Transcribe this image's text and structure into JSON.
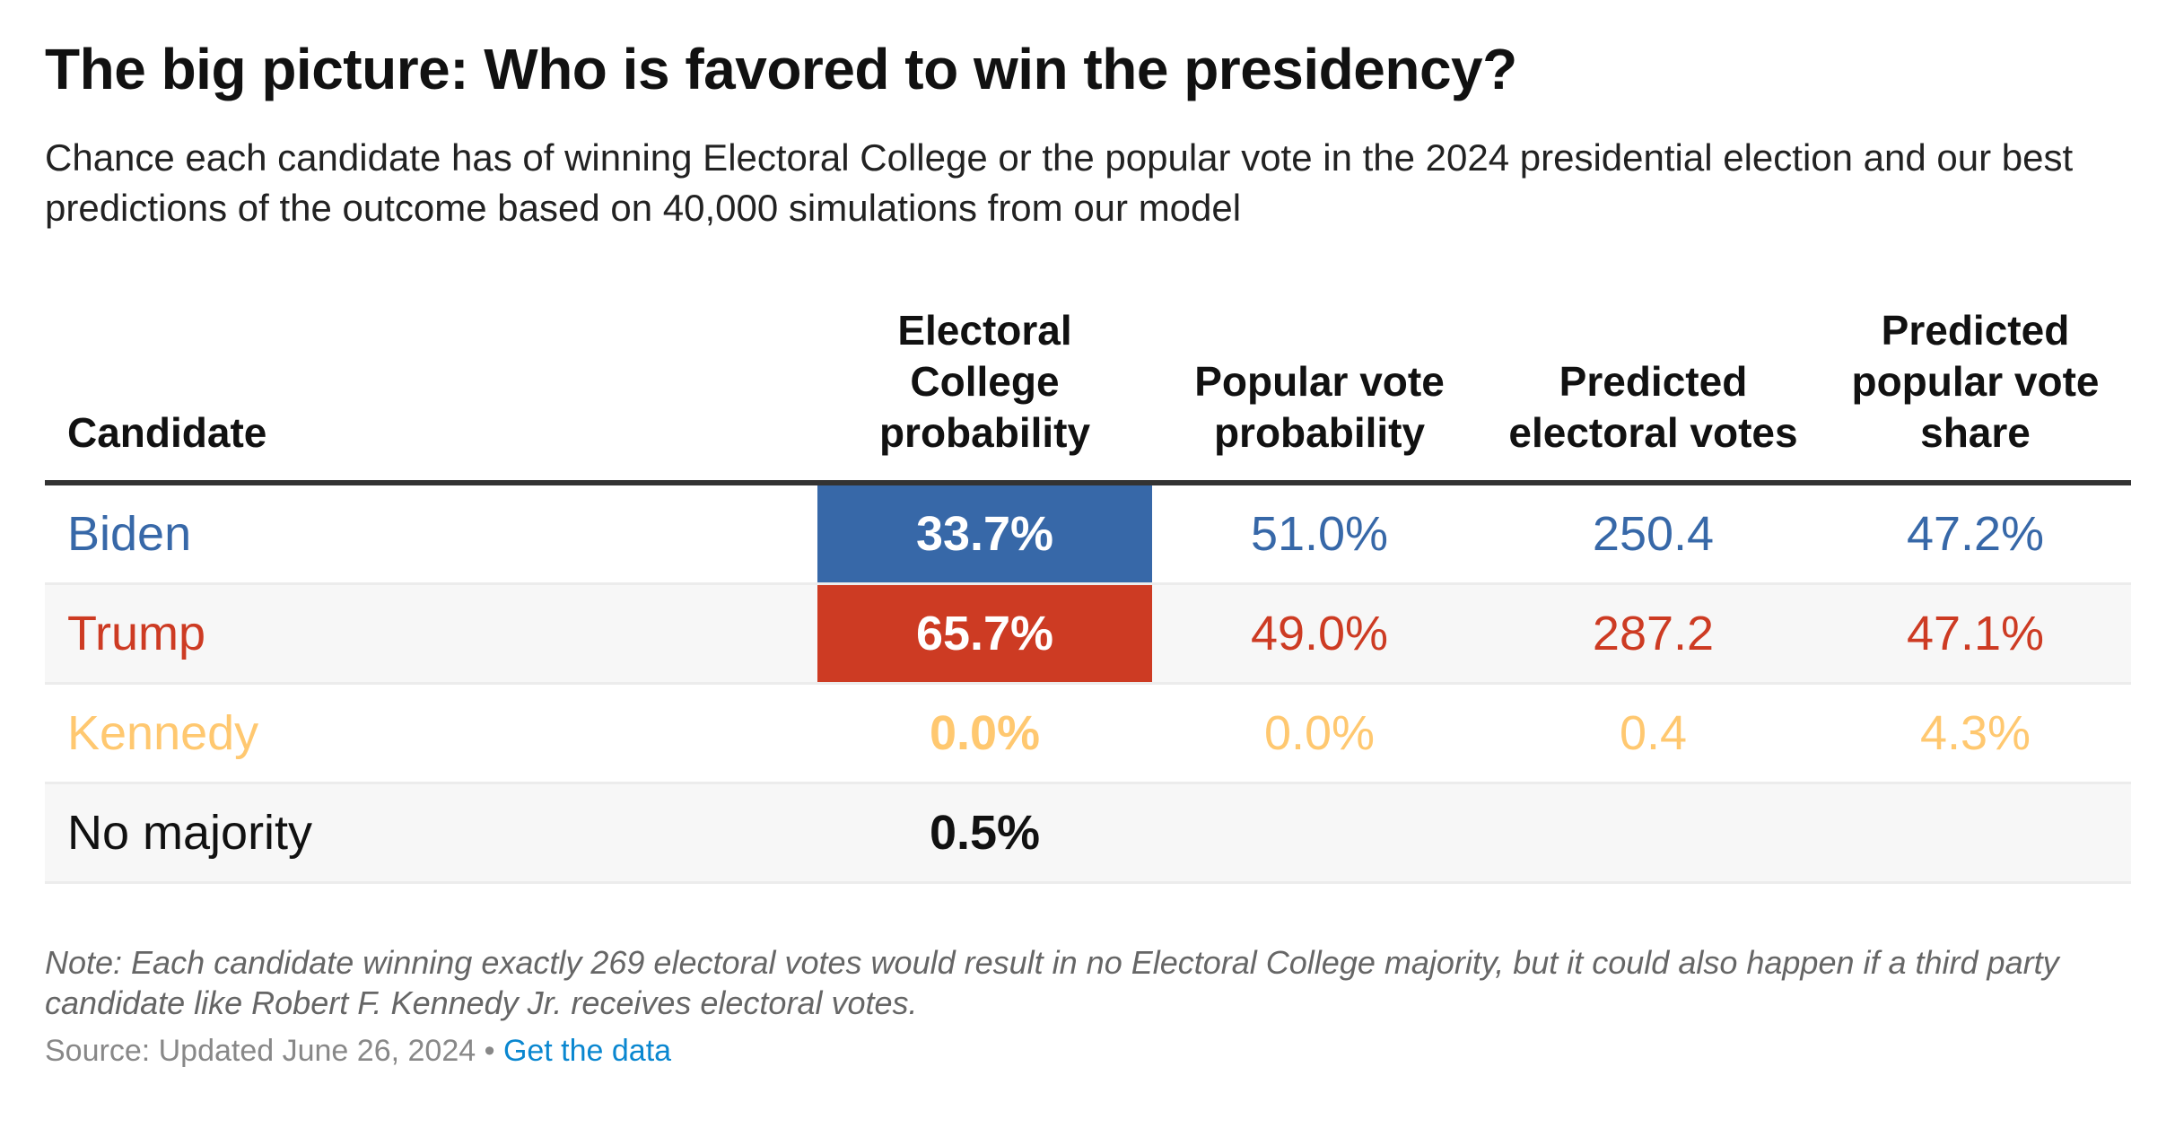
{
  "title": "The big picture: Who is favored to win the presidency?",
  "subtitle": "Chance each candidate has of winning Electoral College or the popular vote in the 2024 presidential election and our best predictions of the outcome based on 40,000 simulations from our model",
  "colors": {
    "biden": "#3768a8",
    "trump": "#cd3b23",
    "kennedy": "#ffc870",
    "none": "#111111"
  },
  "chart_data": {
    "type": "table",
    "columns": [
      "Candidate",
      "Electoral College probability",
      "Popular vote probability",
      "Predicted electoral votes",
      "Predicted popular vote share"
    ],
    "rows": [
      {
        "candidate": "Biden",
        "ec_prob": "33.7%",
        "pop_prob": "51.0%",
        "ev": "250.4",
        "share": "47.2%",
        "key": "biden",
        "highlight": true
      },
      {
        "candidate": "Trump",
        "ec_prob": "65.7%",
        "pop_prob": "49.0%",
        "ev": "287.2",
        "share": "47.1%",
        "key": "trump",
        "highlight": true
      },
      {
        "candidate": "Kennedy",
        "ec_prob": "0.0%",
        "pop_prob": "0.0%",
        "ev": "0.4",
        "share": "4.3%",
        "key": "kennedy",
        "highlight": false
      },
      {
        "candidate": "No majority",
        "ec_prob": "0.5%",
        "pop_prob": "",
        "ev": "",
        "share": "",
        "key": "none",
        "highlight": false
      }
    ]
  },
  "note": "Note: Each candidate winning exactly 269 electoral votes would result in no Electoral College majority, but it could also happen if a third party candidate like Robert F. Kennedy Jr. receives electoral votes.",
  "source": "Source: Updated June 26, 2024",
  "separator": " • ",
  "link_label": "Get the data"
}
